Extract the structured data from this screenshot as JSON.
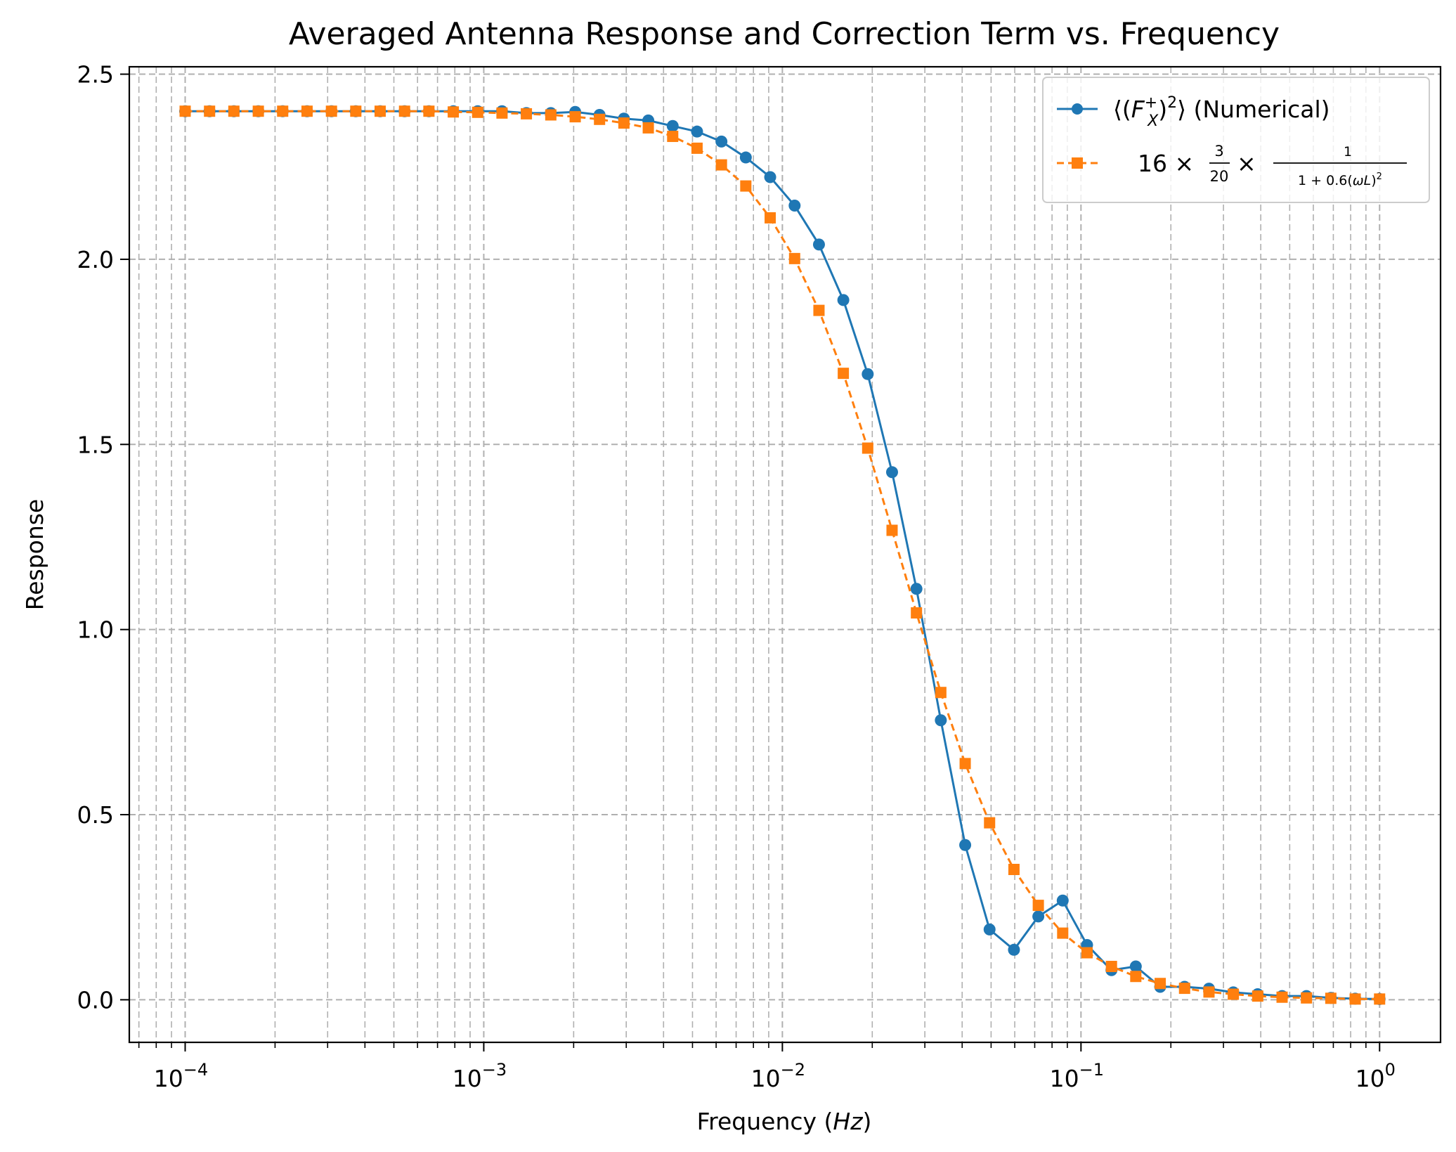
{
  "chart_data": {
    "type": "line",
    "title": "Averaged Antenna Response and Correction Term vs. Frequency",
    "xlabel": "Frequency (Hz)",
    "ylabel": "Response",
    "xscale": "log",
    "xlim": [
      6.5e-05,
      1.6
    ],
    "ylim": [
      -0.115,
      2.52
    ],
    "grid": "both major and minor, dashed",
    "legend_position": "top-right",
    "y_ticks": [
      "0.0",
      "0.5",
      "1.0",
      "1.5",
      "2.0",
      "2.5"
    ],
    "x_ticks": [
      {
        "base": "10",
        "exp": "−4",
        "value": 0.0001
      },
      {
        "base": "10",
        "exp": "−3",
        "value": 0.001
      },
      {
        "base": "10",
        "exp": "−2",
        "value": 0.01
      },
      {
        "base": "10",
        "exp": "−1",
        "value": 0.1
      },
      {
        "base": "10",
        "exp": "0",
        "value": 1
      }
    ],
    "x": [
      0.0001,
      0.0001207,
      0.0001456,
      0.0001758,
      0.0002121,
      0.000256,
      0.000309,
      0.0003728,
      0.0004498,
      0.0005429,
      0.0006551,
      0.0007906,
      0.000954,
      0.001151,
      0.001389,
      0.001677,
      0.002024,
      0.002442,
      0.002947,
      0.003556,
      0.004292,
      0.005179,
      0.006251,
      0.007543,
      0.009103,
      0.01099,
      0.01326,
      0.016,
      0.01931,
      0.0233,
      0.02812,
      0.03393,
      0.04095,
      0.04942,
      0.05964,
      0.07197,
      0.08685,
      0.1048,
      0.1265,
      0.1526,
      0.1842,
      0.2223,
      0.2683,
      0.3237,
      0.3907,
      0.4715,
      0.569,
      0.6866,
      0.8286,
      1.0
    ],
    "series": [
      {
        "name": "⟨(F_X^+)^2⟩ (Numerical)",
        "color": "#1f77b4",
        "line_style": "solid",
        "marker": "circle",
        "values": [
          2.4,
          2.4,
          2.4,
          2.4,
          2.4,
          2.4,
          2.4,
          2.4,
          2.4,
          2.4,
          2.4,
          2.4,
          2.4,
          2.4,
          2.395,
          2.395,
          2.398,
          2.39,
          2.38,
          2.375,
          2.36,
          2.345,
          2.318,
          2.275,
          2.222,
          2.145,
          2.04,
          1.89,
          1.69,
          1.425,
          1.11,
          0.755,
          0.418,
          0.19,
          0.135,
          0.225,
          0.268,
          0.148,
          0.08,
          0.09,
          0.035,
          0.035,
          0.03,
          0.02,
          0.015,
          0.01,
          0.01,
          0.005,
          0.003,
          0.002
        ]
      },
      {
        "name": "16 × 3/20 × 1/(1 + 0.6(ωL)^2)",
        "color": "#ff7f0e",
        "line_style": "dashed",
        "marker": "square",
        "values": [
          2.4,
          2.4,
          2.4,
          2.4,
          2.4,
          2.4,
          2.4,
          2.4,
          2.4,
          2.4,
          2.4,
          2.398,
          2.397,
          2.395,
          2.393,
          2.39,
          2.385,
          2.378,
          2.368,
          2.355,
          2.332,
          2.3,
          2.255,
          2.198,
          2.112,
          2.002,
          1.862,
          1.692,
          1.49,
          1.268,
          1.045,
          0.83,
          0.638,
          0.478,
          0.352,
          0.255,
          0.18,
          0.127,
          0.09,
          0.063,
          0.044,
          0.031,
          0.021,
          0.015,
          0.01,
          0.007,
          0.005,
          0.004,
          0.002,
          0.002
        ]
      }
    ]
  }
}
